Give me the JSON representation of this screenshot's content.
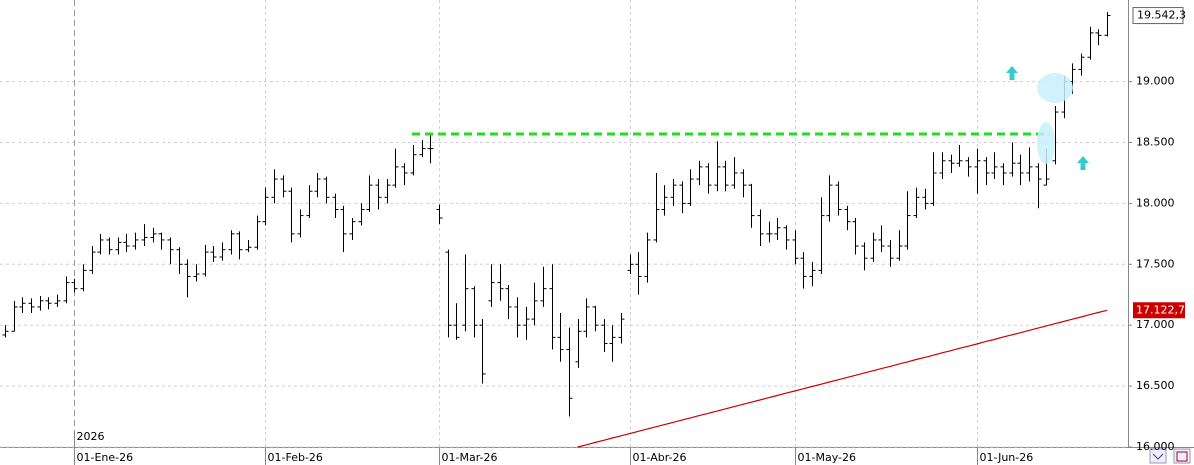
{
  "chart_data": {
    "type": "ohlc",
    "categories": [
      null,
      null,
      null,
      null,
      null,
      null,
      null,
      null,
      "01-Ene-26",
      null,
      null,
      null,
      null,
      null,
      null,
      null,
      null,
      null,
      null,
      null,
      null,
      null,
      null,
      null,
      null,
      null,
      null,
      null,
      null,
      null,
      "01-Feb-26",
      null,
      null,
      null,
      null,
      null,
      null,
      null,
      null,
      null,
      null,
      null,
      null,
      null,
      null,
      null,
      null,
      null,
      null,
      null,
      "01-Mar-26",
      null,
      null,
      null,
      null,
      null,
      null,
      null,
      null,
      null,
      null,
      null,
      null,
      null,
      null,
      null,
      null,
      null,
      null,
      null,
      null,
      null,
      "01-Abr-26",
      null,
      null,
      null,
      null,
      null,
      null,
      null,
      null,
      null,
      null,
      null,
      null,
      null,
      null,
      null,
      null,
      null,
      null,
      "01-May-26",
      null,
      null,
      null,
      null,
      null,
      null,
      null,
      null,
      null,
      null,
      null,
      null,
      null,
      null,
      null,
      null,
      null,
      null,
      null,
      null,
      "01-Jun-26",
      null,
      null,
      null,
      null,
      null,
      null,
      null,
      null,
      null,
      null,
      null,
      null,
      null,
      null,
      null
    ],
    "year_label": "2026",
    "color": "#000000",
    "ohlc": [
      [
        16920,
        17000,
        16900,
        16950
      ],
      [
        16950,
        17200,
        16950,
        17150
      ],
      [
        17150,
        17230,
        17100,
        17180
      ],
      [
        17180,
        17220,
        17100,
        17150
      ],
      [
        17150,
        17240,
        17120,
        17200
      ],
      [
        17200,
        17230,
        17130,
        17180
      ],
      [
        17180,
        17250,
        17150,
        17200
      ],
      [
        17200,
        17400,
        17180,
        17350
      ],
      [
        17350,
        17380,
        17270,
        17300
      ],
      [
        17300,
        17500,
        17280,
        17450
      ],
      [
        17450,
        17650,
        17420,
        17600
      ],
      [
        17600,
        17750,
        17580,
        17700
      ],
      [
        17700,
        17720,
        17580,
        17620
      ],
      [
        17620,
        17720,
        17580,
        17680
      ],
      [
        17680,
        17750,
        17600,
        17650
      ],
      [
        17650,
        17760,
        17620,
        17700
      ],
      [
        17700,
        17830,
        17650,
        17720
      ],
      [
        17720,
        17800,
        17680,
        17750
      ],
      [
        17750,
        17760,
        17620,
        17700
      ],
      [
        17700,
        17720,
        17500,
        17620
      ],
      [
        17620,
        17640,
        17420,
        17500
      ],
      [
        17500,
        17540,
        17230,
        17400
      ],
      [
        17400,
        17500,
        17360,
        17420
      ],
      [
        17420,
        17660,
        17400,
        17600
      ],
      [
        17600,
        17650,
        17520,
        17560
      ],
      [
        17560,
        17680,
        17530,
        17620
      ],
      [
        17620,
        17780,
        17580,
        17750
      ],
      [
        17750,
        17770,
        17540,
        17620
      ],
      [
        17620,
        17700,
        17600,
        17640
      ],
      [
        17640,
        17900,
        17620,
        17850
      ],
      [
        17850,
        18130,
        17820,
        18050
      ],
      [
        18050,
        18280,
        18000,
        18200
      ],
      [
        18200,
        18230,
        18050,
        18100
      ],
      [
        18100,
        18130,
        17680,
        17750
      ],
      [
        17750,
        17950,
        17720,
        17900
      ],
      [
        17900,
        18150,
        17880,
        18100
      ],
      [
        18100,
        18250,
        18050,
        18200
      ],
      [
        18200,
        18220,
        18000,
        18050
      ],
      [
        18050,
        18080,
        17880,
        17950
      ],
      [
        17950,
        17980,
        17600,
        17750
      ],
      [
        17750,
        17880,
        17700,
        17850
      ],
      [
        17850,
        18000,
        17820,
        17950
      ],
      [
        17950,
        18230,
        17930,
        18150
      ],
      [
        18150,
        18200,
        17950,
        18050
      ],
      [
        18050,
        18200,
        18000,
        18150
      ],
      [
        18150,
        18450,
        18130,
        18300
      ],
      [
        18300,
        18330,
        18150,
        18250
      ],
      [
        18250,
        18480,
        18230,
        18400
      ],
      [
        18400,
        18520,
        18380,
        18450
      ],
      [
        18450,
        18560,
        18330,
        18450
      ],
      [
        17950,
        17990,
        17830,
        17880
      ],
      [
        17600,
        17620,
        16900,
        17000
      ],
      [
        17000,
        17180,
        16880,
        16900
      ],
      [
        17000,
        17580,
        16950,
        17300
      ],
      [
        17300,
        17320,
        16900,
        17000
      ],
      [
        17000,
        17050,
        16520,
        16600
      ],
      [
        17200,
        17500,
        17150,
        17350
      ],
      [
        17350,
        17500,
        17200,
        17300
      ],
      [
        17300,
        17330,
        17050,
        17150
      ],
      [
        17150,
        17230,
        16900,
        17000
      ],
      [
        17000,
        17150,
        16880,
        17050
      ],
      [
        17050,
        17350,
        17000,
        17200
      ],
      [
        17200,
        17480,
        17150,
        17300
      ],
      [
        17300,
        17500,
        16800,
        16900
      ],
      [
        16900,
        17100,
        16700,
        16800
      ],
      [
        16800,
        16980,
        16250,
        16400
      ],
      [
        16700,
        17050,
        16650,
        16950
      ],
      [
        16950,
        17220,
        16900,
        17150
      ],
      [
        17150,
        17160,
        16950,
        17000
      ],
      [
        17000,
        17050,
        16780,
        16850
      ],
      [
        16850,
        17000,
        16700,
        16900
      ],
      [
        16900,
        17100,
        16850,
        17050
      ],
      [
        17450,
        17580,
        17420,
        17500
      ],
      [
        17500,
        17600,
        17250,
        17400
      ],
      [
        17400,
        17760,
        17350,
        17700
      ],
      [
        17700,
        18250,
        17680,
        17950
      ],
      [
        17950,
        18150,
        17900,
        18050
      ],
      [
        18050,
        18200,
        17980,
        18150
      ],
      [
        18150,
        18180,
        17920,
        18000
      ],
      [
        18000,
        18280,
        17980,
        18200
      ],
      [
        18200,
        18350,
        18150,
        18300
      ],
      [
        18300,
        18330,
        18080,
        18150
      ],
      [
        18150,
        18510,
        18100,
        18300
      ],
      [
        18300,
        18350,
        18100,
        18150
      ],
      [
        18150,
        18380,
        18120,
        18250
      ],
      [
        18250,
        18280,
        18050,
        18150
      ],
      [
        18150,
        18160,
        17800,
        17900
      ],
      [
        17900,
        17950,
        17650,
        17750
      ],
      [
        17750,
        17850,
        17680,
        17750
      ],
      [
        17750,
        17880,
        17700,
        17800
      ],
      [
        17800,
        17820,
        17620,
        17700
      ],
      [
        17700,
        17780,
        17500,
        17550
      ],
      [
        17550,
        17600,
        17300,
        17400
      ],
      [
        17400,
        17520,
        17320,
        17450
      ],
      [
        17450,
        18050,
        17420,
        17900
      ],
      [
        17900,
        18230,
        17850,
        18150
      ],
      [
        18150,
        18180,
        17900,
        17950
      ],
      [
        17950,
        17980,
        17780,
        17850
      ],
      [
        17850,
        17880,
        17580,
        17650
      ],
      [
        17650,
        17680,
        17450,
        17550
      ],
      [
        17550,
        17760,
        17520,
        17700
      ],
      [
        17700,
        17820,
        17600,
        17650
      ],
      [
        17650,
        17700,
        17480,
        17550
      ],
      [
        17550,
        17780,
        17530,
        17650
      ],
      [
        17650,
        18100,
        17620,
        17900
      ],
      [
        17900,
        18130,
        17880,
        18050
      ],
      [
        18050,
        18120,
        17950,
        18000
      ],
      [
        18000,
        18420,
        17980,
        18250
      ],
      [
        18250,
        18420,
        18200,
        18350
      ],
      [
        18350,
        18400,
        18250,
        18330
      ],
      [
        18330,
        18480,
        18300,
        18350
      ],
      [
        18350,
        18380,
        18220,
        18300
      ],
      [
        18300,
        18450,
        18080,
        18350
      ],
      [
        18350,
        18380,
        18150,
        18250
      ],
      [
        18250,
        18420,
        18200,
        18300
      ],
      [
        18300,
        18330,
        18150,
        18250
      ],
      [
        18250,
        18500,
        18220,
        18330
      ],
      [
        18330,
        18400,
        18150,
        18250
      ],
      [
        18250,
        18460,
        18180,
        18300
      ],
      [
        18300,
        18330,
        17960,
        18200
      ],
      [
        18150,
        18450,
        18150,
        18200
      ],
      [
        18350,
        18800,
        18320,
        18750
      ],
      [
        18750,
        19050,
        18700,
        19000
      ],
      [
        19000,
        19150,
        18900,
        19100
      ],
      [
        19100,
        19230,
        19050,
        19200
      ],
      [
        19200,
        19450,
        19180,
        19400
      ],
      [
        19400,
        19430,
        19300,
        19380
      ],
      [
        19380,
        19570,
        19370,
        19542.3
      ]
    ],
    "close_label": "19.542,3",
    "ma": {
      "color": "#cc0000",
      "values": [
        null,
        null,
        null,
        null,
        null,
        null,
        null,
        null,
        null,
        null,
        null,
        null,
        null,
        null,
        null,
        null,
        null,
        null,
        null,
        null,
        null,
        null,
        null,
        null,
        null,
        null,
        null,
        null,
        null,
        null,
        null,
        null,
        null,
        null,
        null,
        null,
        null,
        null,
        null,
        null,
        null,
        null,
        null,
        null,
        null,
        null,
        null,
        null,
        null,
        null,
        null,
        null,
        null,
        null,
        null,
        null,
        null,
        null,
        null,
        null,
        null,
        null,
        null,
        null,
        null,
        null,
        16000,
        16018,
        16037,
        16055,
        16074,
        16092,
        16110,
        16129,
        16147,
        16166,
        16184,
        16202,
        16221,
        16239,
        16258,
        16276,
        16294,
        16313,
        16331,
        16350,
        16368,
        16386,
        16405,
        16423,
        16442,
        16460,
        16478,
        16497,
        16515,
        16534,
        16552,
        16570,
        16589,
        16607,
        16626,
        16644,
        16662,
        16681,
        16699,
        16718,
        16736,
        16754,
        16773,
        16791,
        16810,
        16828,
        16846,
        16865,
        16883,
        16902,
        16920,
        16938,
        16957,
        16975,
        16994,
        17012,
        17030,
        17049,
        17067,
        17086,
        17104,
        17122.7
      ],
      "label": "17.122,7"
    },
    "level": {
      "value": 18570,
      "color": "#22dd22"
    },
    "ylim": [
      16000,
      19670
    ],
    "yticks": [
      {
        "value": 16000,
        "label": "16.000"
      },
      {
        "value": 16500,
        "label": "16.500"
      },
      {
        "value": 17000,
        "label": "17.000"
      },
      {
        "value": 17500,
        "label": "17.500"
      },
      {
        "value": 18000,
        "label": "18.000"
      },
      {
        "value": 18500,
        "label": "18.500"
      },
      {
        "value": 19000,
        "label": "19.000"
      }
    ],
    "grid": true
  }
}
